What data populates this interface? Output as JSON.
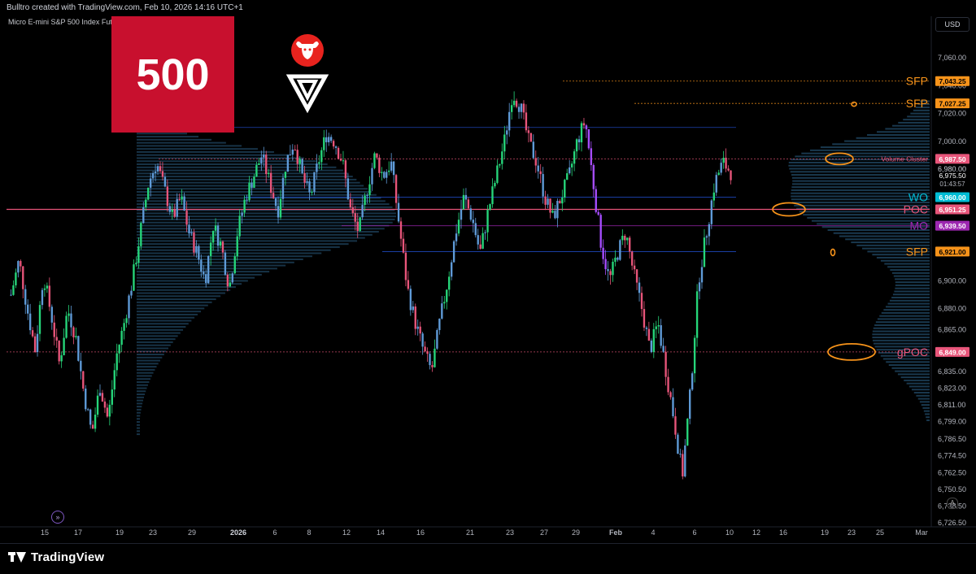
{
  "header": {
    "created_by": "Bulltro created with TradingView.com, Feb 10, 2026 14:16 UTC+1",
    "symbol": "Micro E-mini S&P 500 Index Futures · 2h · CME"
  },
  "branding": {
    "logo_500": "500",
    "footer_brand": "TradingView",
    "bull_logo_icon": "bull-head-icon",
    "triangle_logo_icon": "triangle-logo-icon"
  },
  "controls": {
    "currency": "USD",
    "auto_scale": "A",
    "replay": "»"
  },
  "colors": {
    "bull": "#26d67a",
    "bear": "#e8557a",
    "wick_blue": "#5f9bd8",
    "profile": "#2a5d82",
    "poc_line": "#f23645",
    "gpoc_line": "#e8557a",
    "sfp": "#f7931a",
    "wo": "#00bcd4",
    "mo": "#9c27b0",
    "annotation": "#f7931a"
  },
  "chart_data": {
    "type": "candlestick",
    "timeframe": "2h",
    "y_axis": {
      "min": 6720,
      "max": 7085,
      "ticks": [
        7060,
        7040,
        7020,
        7000,
        6980,
        6960,
        6940,
        6920,
        6900,
        6880,
        6865,
        6849,
        6835,
        6823,
        6811,
        6799,
        6786.5,
        6774.5,
        6762.5,
        6750.5,
        6738.5,
        6726.5
      ],
      "tick_labels": [
        "7,060.00",
        "7,040.00",
        "7,020.00",
        "7,000.00",
        "6,980.00",
        "6,960.00",
        "6,940.00",
        "6,920.00",
        "6,900.00",
        "6,880.00",
        "6,865.00",
        "6,849.00",
        "6,835.00",
        "6,823.00",
        "6,811.00",
        "6,799.00",
        "6,786.50",
        "6,774.50",
        "6,762.50",
        "6,750.50",
        "6,738.50",
        "6,726.50"
      ]
    },
    "x_axis": {
      "labels": [
        "15",
        "17",
        "19",
        "23",
        "29",
        "2026",
        "6",
        "8",
        "12",
        "14",
        "16",
        "21",
        "23",
        "27",
        "29",
        "Feb",
        "4",
        "6",
        "10",
        "12",
        "16",
        "19",
        "23",
        "25",
        "Mar"
      ]
    },
    "price_path": [
      6890,
      6915,
      6880,
      6850,
      6905,
      6875,
      6840,
      6880,
      6860,
      6820,
      6790,
      6825,
      6800,
      6845,
      6870,
      6900,
      6935,
      6970,
      6985,
      6965,
      6945,
      6960,
      6935,
      6920,
      6900,
      6940,
      6925,
      6895,
      6935,
      6960,
      6975,
      6990,
      6970,
      6950,
      6985,
      7000,
      6975,
      6960,
      6985,
      7005,
      7000,
      6985,
      6950,
      6935,
      6965,
      6990,
      6975,
      6985,
      6940,
      6895,
      6870,
      6850,
      6835,
      6870,
      6900,
      6935,
      6960,
      6945,
      6920,
      6950,
      6975,
      7000,
      7035,
      7025,
      7000,
      6985,
      6960,
      6945,
      6960,
      6975,
      7000,
      7015,
      6970,
      6925,
      6900,
      6920,
      6935,
      6905,
      6880,
      6850,
      6870,
      6835,
      6800,
      6760,
      6820,
      6900,
      6935,
      6970,
      6985,
      6978
    ],
    "levels": [
      {
        "label": "SFP",
        "price": 7043.25,
        "price_label": "7,043.25",
        "color": "#f7931a",
        "style": "dotted"
      },
      {
        "label": "SFP",
        "price": 7027.25,
        "price_label": "7,027.25",
        "color": "#f7931a",
        "style": "dotted"
      },
      {
        "label": "Volume Cluster",
        "price": 6987.5,
        "price_label": "6,987.50",
        "color": "#e8557a",
        "style": "dotted"
      },
      {
        "label": "WO",
        "price": 6960.0,
        "price_label": "6,960.00",
        "color": "#00bcd4",
        "style": "solid"
      },
      {
        "label": "POC",
        "price": 6951.25,
        "price_label": "6,951.25",
        "color": "#e8557a",
        "style": "solid"
      },
      {
        "label": "MO",
        "price": 6939.5,
        "price_label": "6,939.50",
        "color": "#9c27b0",
        "style": "solid"
      },
      {
        "label": "SFP",
        "price": 6921.0,
        "price_label": "6,921.00",
        "color": "#f7931a",
        "style": "solid"
      },
      {
        "label": "gPOC",
        "price": 6849.0,
        "price_label": "6,849.00",
        "color": "#e8557a",
        "style": "dotted"
      }
    ],
    "current_price": {
      "price": 6975.5,
      "price_label": "6,975.50",
      "countdown": "01:43:57"
    },
    "extra_labels": [
      {
        "price": 6980,
        "label": "6,980.00"
      }
    ]
  }
}
